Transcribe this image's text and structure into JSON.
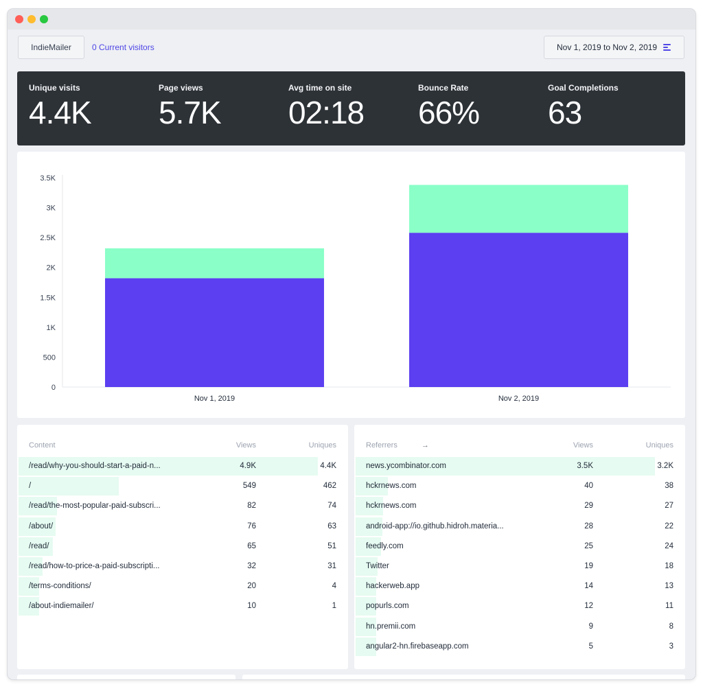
{
  "header": {
    "site_label": "IndieMailer",
    "visitors_label": "0 Current visitors",
    "date_range": "Nov 1, 2019 to Nov 2, 2019",
    "date_menu_icon": "menu-lines-icon"
  },
  "stats": [
    {
      "label": "Unique visits",
      "value": "4.4K"
    },
    {
      "label": "Page views",
      "value": "5.7K"
    },
    {
      "label": "Avg time on site",
      "value": "02:18"
    },
    {
      "label": "Bounce Rate",
      "value": "66%"
    },
    {
      "label": "Goal Completions",
      "value": "63"
    }
  ],
  "colors": {
    "accent": "#4f46e5",
    "bar_primary": "#5b3ff0",
    "bar_secondary": "#8affc8",
    "row_bar": "#e6fbf1",
    "stats_bg": "#2d3237"
  },
  "chart_data": {
    "type": "bar",
    "stacked": true,
    "categories": [
      "Nov 1, 2019",
      "Nov 2, 2019"
    ],
    "series": [
      {
        "values": [
          1820,
          2580
        ]
      },
      {
        "values": [
          500,
          800
        ]
      }
    ],
    "ylim": [
      0,
      3500
    ],
    "yticks": [
      0,
      500,
      1000,
      1500,
      2000,
      2500,
      3000,
      3500
    ],
    "ytick_labels": [
      "0",
      "500",
      "1K",
      "1.5K",
      "2K",
      "2.5K",
      "3K",
      "3.5K"
    ],
    "xlabel": "",
    "ylabel": "",
    "grid": false
  },
  "content_table": {
    "headers": {
      "name": "Content",
      "views": "Views",
      "uniques": "Uniques"
    },
    "max_views": 4900,
    "rows": [
      {
        "name": "/read/why-you-should-start-a-paid-n...",
        "views": "4.9K",
        "uniques": "4.4K",
        "views_num": 4900
      },
      {
        "name": "/",
        "views": "549",
        "uniques": "462",
        "views_num": 549
      },
      {
        "name": "/read/the-most-popular-paid-subscri...",
        "views": "82",
        "uniques": "74",
        "views_num": 82
      },
      {
        "name": "/about/",
        "views": "76",
        "uniques": "63",
        "views_num": 76
      },
      {
        "name": "/read/",
        "views": "65",
        "uniques": "51",
        "views_num": 65
      },
      {
        "name": "/read/how-to-price-a-paid-subscripti...",
        "views": "32",
        "uniques": "31",
        "views_num": 32
      },
      {
        "name": "/terms-conditions/",
        "views": "20",
        "uniques": "4",
        "views_num": 20
      },
      {
        "name": "/about-indiemailer/",
        "views": "10",
        "uniques": "1",
        "views_num": 10
      }
    ]
  },
  "referrers_table": {
    "headers": {
      "name": "Referrers",
      "views": "Views",
      "uniques": "Uniques"
    },
    "arrow_icon": "arrow-right-icon",
    "max_views": 3500,
    "rows": [
      {
        "name": "news.ycombinator.com",
        "views": "3.5K",
        "uniques": "3.2K",
        "views_num": 3500
      },
      {
        "name": "hckrnews.com",
        "views": "40",
        "uniques": "38",
        "views_num": 40
      },
      {
        "name": "hckrnews.com",
        "views": "29",
        "uniques": "27",
        "views_num": 29
      },
      {
        "name": "android-app://io.github.hidroh.materia...",
        "views": "28",
        "uniques": "22",
        "views_num": 28
      },
      {
        "name": "feedly.com",
        "views": "25",
        "uniques": "24",
        "views_num": 25
      },
      {
        "name": "Twitter",
        "views": "19",
        "uniques": "18",
        "views_num": 19
      },
      {
        "name": "hackerweb.app",
        "views": "14",
        "uniques": "13",
        "views_num": 14
      },
      {
        "name": "popurls.com",
        "views": "12",
        "uniques": "11",
        "views_num": 12
      },
      {
        "name": "hn.premii.com",
        "views": "9",
        "uniques": "8",
        "views_num": 9
      },
      {
        "name": "angular2-hn.firebaseapp.com",
        "views": "5",
        "uniques": "3",
        "views_num": 5
      }
    ]
  }
}
